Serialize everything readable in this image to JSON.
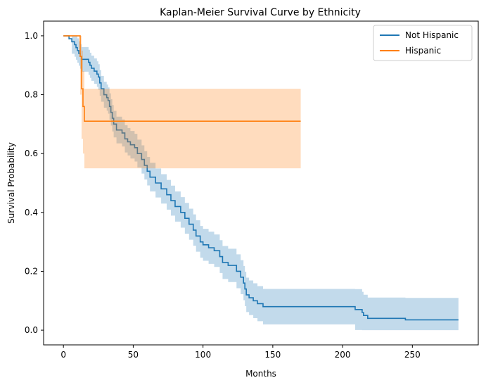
{
  "chart_data": {
    "type": "line",
    "title": "Kaplan-Meier Survival Curve by Ethnicity",
    "xlabel": "Months",
    "ylabel": "Survival Probability",
    "xlim": [
      -14.2,
      297.2
    ],
    "ylim": [
      -0.05,
      1.05
    ],
    "xticks": [
      0,
      50,
      100,
      150,
      200,
      250
    ],
    "yticks": [
      0.0,
      0.2,
      0.4,
      0.6,
      0.8,
      1.0
    ],
    "xtick_labels": [
      "0",
      "50",
      "100",
      "150",
      "200",
      "250"
    ],
    "ytick_labels": [
      "0.0",
      "0.2",
      "0.4",
      "0.6",
      "0.8",
      "1.0"
    ],
    "grid": false,
    "legend_position": "top-right",
    "series": [
      {
        "name": "Not Hispanic",
        "color": "#1f77b4",
        "band_color": "#1f77b4",
        "steps": [
          [
            0,
            1.0
          ],
          [
            4,
            0.99
          ],
          [
            6,
            0.98
          ],
          [
            8,
            0.97
          ],
          [
            9,
            0.96
          ],
          [
            10,
            0.95
          ],
          [
            11,
            0.94
          ],
          [
            12,
            0.93
          ],
          [
            13,
            0.92
          ],
          [
            18,
            0.91
          ],
          [
            19,
            0.9
          ],
          [
            20,
            0.89
          ],
          [
            22,
            0.88
          ],
          [
            24,
            0.87
          ],
          [
            25,
            0.86
          ],
          [
            26,
            0.84
          ],
          [
            27,
            0.82
          ],
          [
            29,
            0.8
          ],
          [
            31,
            0.79
          ],
          [
            32,
            0.78
          ],
          [
            33,
            0.76
          ],
          [
            34,
            0.74
          ],
          [
            35,
            0.72
          ],
          [
            36,
            0.7
          ],
          [
            38,
            0.68
          ],
          [
            42,
            0.67
          ],
          [
            44,
            0.65
          ],
          [
            46,
            0.64
          ],
          [
            48,
            0.63
          ],
          [
            51,
            0.62
          ],
          [
            53,
            0.6
          ],
          [
            56,
            0.58
          ],
          [
            58,
            0.56
          ],
          [
            60,
            0.54
          ],
          [
            62,
            0.52
          ],
          [
            66,
            0.5
          ],
          [
            70,
            0.48
          ],
          [
            74,
            0.46
          ],
          [
            77,
            0.44
          ],
          [
            80,
            0.42
          ],
          [
            84,
            0.4
          ],
          [
            87,
            0.38
          ],
          [
            90,
            0.36
          ],
          [
            93,
            0.34
          ],
          [
            95,
            0.32
          ],
          [
            98,
            0.3
          ],
          [
            100,
            0.29
          ],
          [
            104,
            0.28
          ],
          [
            108,
            0.27
          ],
          [
            112,
            0.25
          ],
          [
            114,
            0.23
          ],
          [
            118,
            0.22
          ],
          [
            124,
            0.2
          ],
          [
            127,
            0.18
          ],
          [
            129,
            0.16
          ],
          [
            130,
            0.14
          ],
          [
            131,
            0.12
          ],
          [
            133,
            0.11
          ],
          [
            136,
            0.1
          ],
          [
            139,
            0.09
          ],
          [
            143,
            0.08
          ],
          [
            209,
            0.07
          ],
          [
            214,
            0.06
          ],
          [
            215,
            0.05
          ],
          [
            218,
            0.04
          ],
          [
            245,
            0.035
          ],
          [
            283,
            0.035
          ]
        ],
        "band_width": [
          0.04,
          0.08
        ]
      },
      {
        "name": "Hispanic",
        "color": "#ff7f0e",
        "band_color": "#ff7f0e",
        "steps": [
          [
            0,
            1.0
          ],
          [
            12,
            0.93
          ],
          [
            13,
            0.82
          ],
          [
            14,
            0.76
          ],
          [
            15,
            0.71
          ],
          [
            170,
            0.71
          ]
        ],
        "band": [
          [
            12,
            0.8,
            1.0
          ],
          [
            13,
            0.65,
            0.95
          ],
          [
            14,
            0.6,
            0.88
          ],
          [
            15,
            0.55,
            0.82
          ],
          [
            170,
            0.55,
            0.82
          ]
        ]
      }
    ]
  }
}
